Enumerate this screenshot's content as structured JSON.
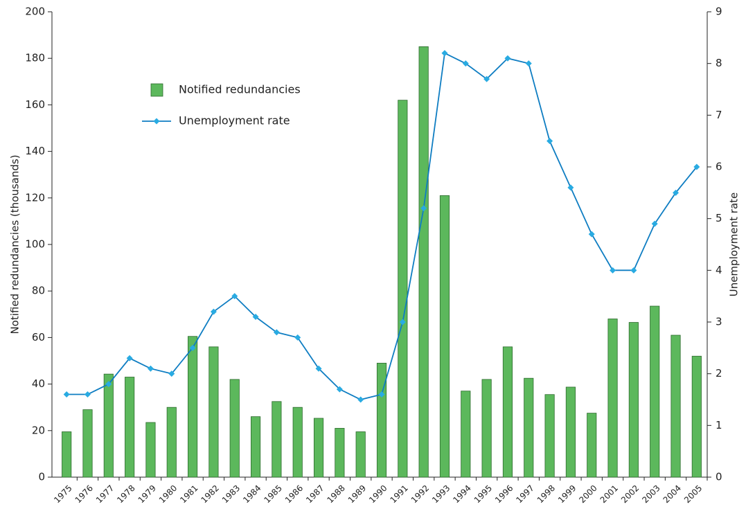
{
  "chart_data": {
    "type": "bar",
    "y_label": "Notified redundancies (thousands)",
    "y2_label": "Unemployment rate",
    "categories": [
      "1975",
      "1976",
      "1977",
      "1978",
      "1979",
      "1980",
      "1981",
      "1982",
      "1983",
      "1984",
      "1985",
      "1986",
      "1987",
      "1988",
      "1989",
      "1990",
      "1991",
      "1992",
      "1993",
      "1994",
      "1995",
      "1996",
      "1997",
      "1998",
      "1999",
      "2000",
      "2001",
      "2002",
      "2003",
      "2004",
      "2005"
    ],
    "series": [
      {
        "name": "Notified redundancies",
        "color": "#5cb85c",
        "edge_color": "#2d6a2d",
        "values": [
          19.5,
          29,
          44.3,
          43,
          23.5,
          30,
          60.5,
          56,
          42,
          26,
          32.5,
          30,
          25.3,
          21,
          19.5,
          49,
          162,
          185,
          121,
          37,
          42,
          56,
          42.5,
          35.5,
          38.7,
          27.5,
          68,
          66.5,
          73.5,
          61,
          52
        ]
      },
      {
        "name": "Unemployment rate",
        "color": "#0e7dc2",
        "marker_color": "#29abe2",
        "axis": "y2",
        "values": [
          1.6,
          1.6,
          1.8,
          2.3,
          2.1,
          2.0,
          2.5,
          3.2,
          3.5,
          3.1,
          2.8,
          2.7,
          2.1,
          1.7,
          1.5,
          1.6,
          3.0,
          5.2,
          8.2,
          8.0,
          7.7,
          8.1,
          8.0,
          6.5,
          5.6,
          4.7,
          4.0,
          4.0,
          4.9,
          5.5,
          6.0
        ]
      }
    ],
    "ylim": [
      0,
      200
    ],
    "yticks": [
      0,
      20,
      40,
      60,
      80,
      100,
      120,
      140,
      160,
      180,
      200
    ],
    "y2lim": [
      0,
      9
    ],
    "y2ticks": [
      0,
      1,
      2,
      3,
      4,
      5,
      6,
      7,
      8,
      9
    ],
    "grid": false,
    "legend": "upper left"
  }
}
